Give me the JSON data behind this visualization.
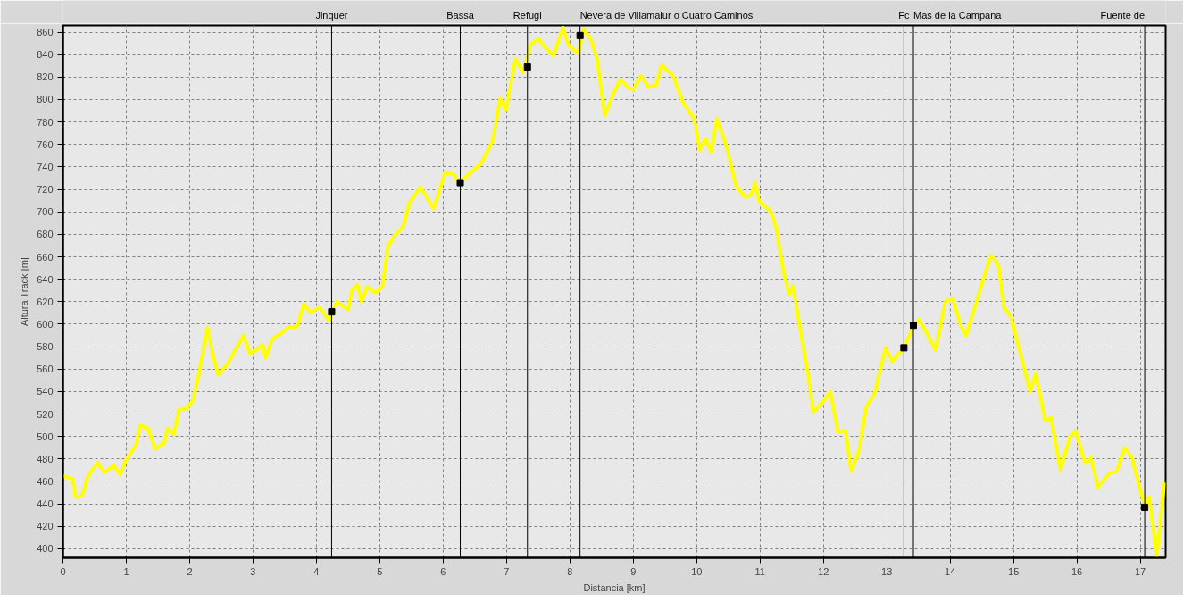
{
  "chart_data": {
    "type": "line",
    "xlabel": "Distancia [km]",
    "ylabel": "Altura Track [m]",
    "xlim": [
      0,
      17.4
    ],
    "ylim": [
      392,
      866
    ],
    "xticks": [
      0,
      1,
      2,
      3,
      4,
      5,
      6,
      7,
      8,
      9,
      10,
      11,
      12,
      13,
      14,
      15,
      16,
      17
    ],
    "yticks": [
      400,
      420,
      440,
      460,
      480,
      500,
      520,
      540,
      560,
      580,
      600,
      620,
      640,
      660,
      680,
      700,
      720,
      740,
      760,
      780,
      800,
      820,
      840,
      860
    ],
    "grid": true,
    "line_style": "solid",
    "series": [
      {
        "color": "#ffff00",
        "x": [
          0,
          0.15,
          0.2,
          0.3,
          0.4,
          0.55,
          0.65,
          0.8,
          0.9,
          1.0,
          1.15,
          1.22,
          1.35,
          1.45,
          1.6,
          1.65,
          1.75,
          1.83,
          1.95,
          2.05,
          2.15,
          2.28,
          2.35,
          2.45,
          2.6,
          2.8,
          2.85,
          2.95,
          3.05,
          3.15,
          3.2,
          3.3,
          3.45,
          3.55,
          3.7,
          3.8,
          3.9,
          4.05,
          4.2,
          4.25,
          4.32,
          4.5,
          4.56,
          4.65,
          4.71,
          4.8,
          4.92,
          5.04,
          5.13,
          5.25,
          5.37,
          5.46,
          5.64,
          5.85,
          6.03,
          6.18,
          6.24,
          6.45,
          6.6,
          6.78,
          6.9,
          6.99,
          7.14,
          7.26,
          7.38,
          7.5,
          7.62,
          7.74,
          7.89,
          7.98,
          8.13,
          8.22,
          8.34,
          8.43,
          8.55,
          8.67,
          8.79,
          8.91,
          9.0,
          9.12,
          9.24,
          9.36,
          9.45,
          9.63,
          9.78,
          9.96,
          10.05,
          10.14,
          10.23,
          10.32,
          10.47,
          10.62,
          10.77,
          10.86,
          10.92,
          10.98,
          11.16,
          11.25,
          11.37,
          11.46,
          11.52,
          11.64,
          11.76,
          11.84,
          11.96,
          12.11,
          12.23,
          12.35,
          12.44,
          12.56,
          12.68,
          12.8,
          12.98,
          13.09,
          13.27,
          13.39,
          13.51,
          13.65,
          13.77,
          13.92,
          14.04,
          14.16,
          14.25,
          14.43,
          14.64,
          14.76,
          14.85,
          14.96,
          15.08,
          15.26,
          15.35,
          15.5,
          15.59,
          15.74,
          15.89,
          15.98,
          16.13,
          16.22,
          16.33,
          16.51,
          16.63,
          16.75,
          16.87,
          16.99,
          17.08,
          17.14,
          17.26,
          17.38
        ],
        "values": [
          465,
          462,
          446,
          447,
          465,
          477,
          468,
          474,
          466,
          480,
          492,
          510,
          507,
          489,
          494,
          507,
          502,
          524,
          525,
          532,
          557,
          597,
          577,
          555,
          565,
          585,
          590,
          574,
          577,
          582,
          570,
          587,
          592,
          597,
          598,
          618,
          610,
          615,
          603,
          611,
          620,
          613,
          630,
          635,
          620,
          633,
          628,
          633,
          670,
          680,
          687,
          707,
          722,
          703,
          735,
          733,
          725,
          736,
          743,
          763,
          801,
          791,
          836,
          824,
          849,
          854,
          846,
          839,
          864,
          848,
          841,
          863,
          852,
          836,
          786,
          803,
          818,
          811,
          809,
          821,
          811,
          813,
          831,
          821,
          798,
          783,
          755,
          765,
          753,
          783,
          758,
          723,
          713,
          715,
          726,
          710,
          701,
          687,
          647,
          627,
          634,
          594,
          554,
          522,
          529,
          540,
          504,
          505,
          469,
          487,
          527,
          537,
          579,
          567,
          579,
          594,
          604,
          590,
          577,
          620,
          623,
          600,
          590,
          623,
          661,
          653,
          615,
          607,
          580,
          540,
          556,
          514,
          517,
          470,
          500,
          505,
          476,
          481,
          455,
          467,
          469,
          490,
          481,
          454,
          437,
          446,
          394,
          459
        ]
      },
      {
        "type": "scatter",
        "marker": "square",
        "color": "#000000",
        "x": [
          4.24,
          6.27,
          7.33,
          8.16,
          13.27,
          13.42,
          17.07
        ],
        "values": [
          611,
          726,
          829,
          857,
          579,
          599,
          437
        ]
      }
    ],
    "ref_lines": [
      {
        "axis": "x",
        "value": 4.24,
        "label": "Jinquer",
        "color": "#000000"
      },
      {
        "axis": "x",
        "value": 6.27,
        "label": "Bassa",
        "color": "#000000"
      },
      {
        "axis": "x",
        "value": 7.33,
        "label": "Refugi",
        "color": "#000000"
      },
      {
        "axis": "x",
        "value": 8.16,
        "label": "Nevera de Villamalur o Cuatro Caminos",
        "color": "#000000"
      },
      {
        "axis": "x",
        "value": 13.27,
        "label": "Fc",
        "color": "#000000"
      },
      {
        "axis": "x",
        "value": 13.42,
        "label": "Mas de la Campana",
        "color": "#000000"
      },
      {
        "axis": "x",
        "value": 17.07,
        "label": "Fuente de",
        "color": "#000000"
      }
    ]
  }
}
